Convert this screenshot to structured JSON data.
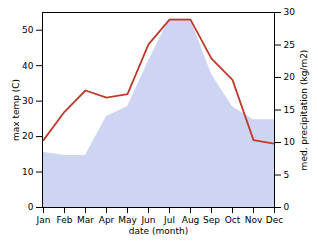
{
  "chart_data": {
    "type": "line",
    "xlabel": "date (month)",
    "ylabel": "max temp (C)",
    "y2label": "med. precipitation (kg/m2)",
    "categories": [
      "Jan",
      "Feb",
      "Mar",
      "Apr",
      "May",
      "Jun",
      "Jul",
      "Aug",
      "Sep",
      "Oct",
      "Nov",
      "Dec"
    ],
    "series": [
      {
        "type": "area",
        "axis": "y2",
        "color": "#c5cef0",
        "values": [
          8.5,
          8.0,
          8.0,
          14,
          15.5,
          22.5,
          29,
          29,
          20.5,
          15.5,
          13.5,
          13.5
        ]
      },
      {
        "type": "line",
        "color": "#c0392b",
        "values": [
          19,
          27,
          33,
          31,
          32,
          46,
          53,
          53,
          42,
          36,
          19,
          18
        ]
      }
    ],
    "ylim": [
      0,
      55
    ],
    "yticks": [
      0,
      10,
      20,
      30,
      40,
      50
    ],
    "y2lim": [
      0,
      30
    ],
    "y2ticks": [
      0,
      5,
      10,
      15,
      20,
      25,
      30
    ],
    "grid": false
  }
}
